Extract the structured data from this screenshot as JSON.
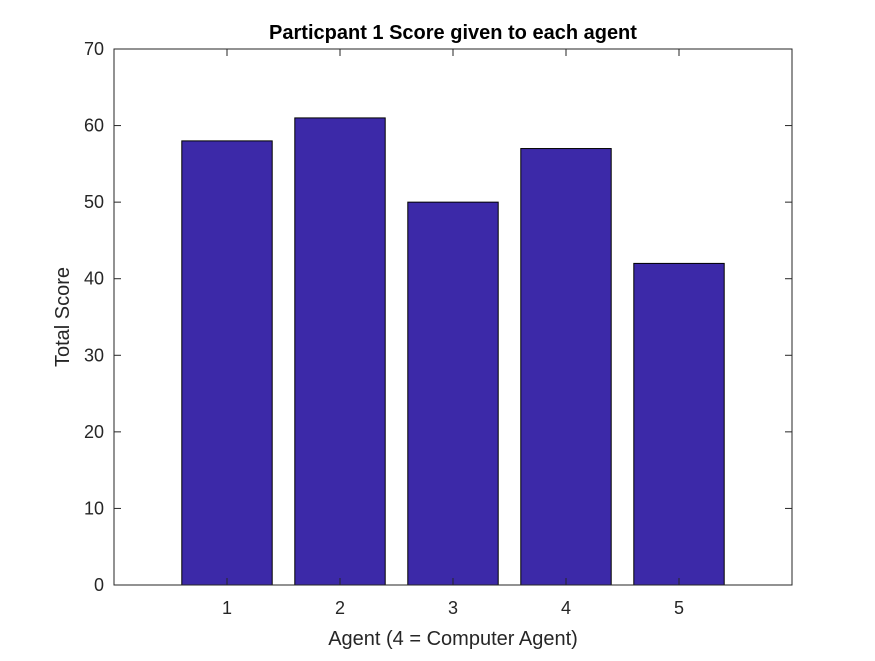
{
  "chart_data": {
    "type": "bar",
    "title": "Particpant 1 Score given to each agent",
    "xlabel": "Agent (4 = Computer Agent)",
    "ylabel": "Total Score",
    "categories": [
      "1",
      "2",
      "3",
      "4",
      "5"
    ],
    "values": [
      58,
      61,
      50,
      57,
      42
    ],
    "ylim": [
      0,
      70
    ],
    "xlim": [
      0,
      6
    ],
    "yticks": [
      "0",
      "10",
      "20",
      "30",
      "40",
      "50",
      "60",
      "70"
    ],
    "grid": false,
    "legend": "none",
    "bar_color": "#3c29a8",
    "bar_edge_color": "#000000"
  }
}
